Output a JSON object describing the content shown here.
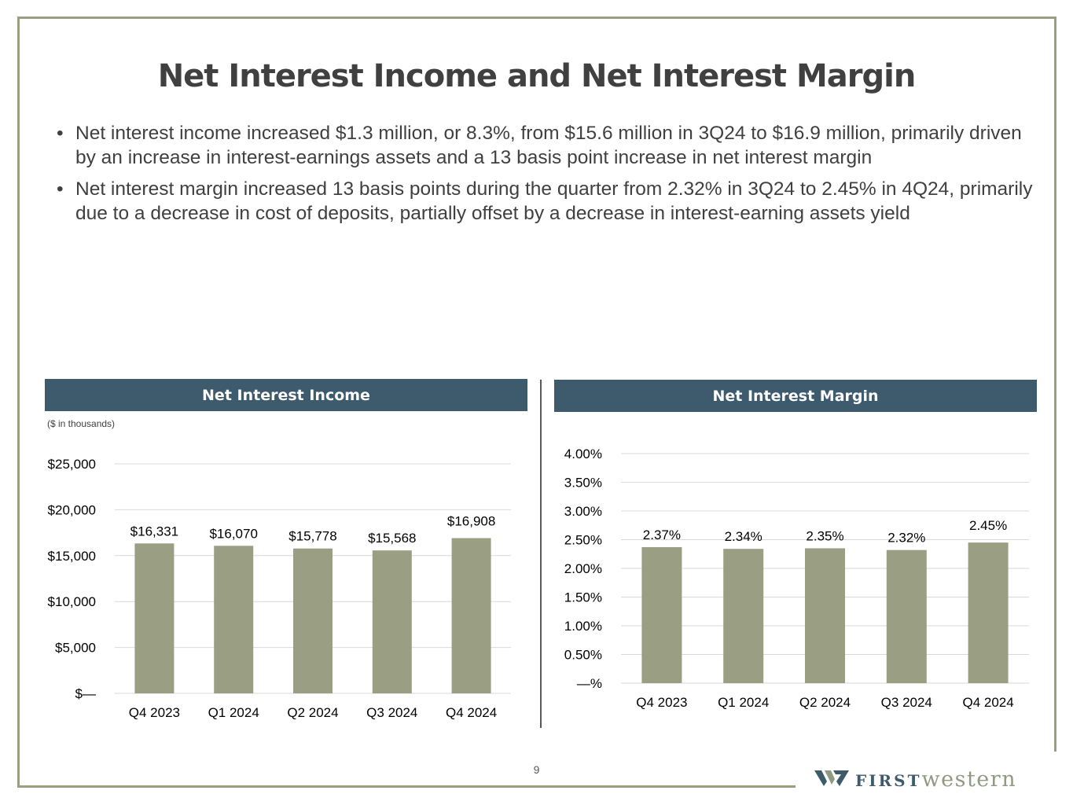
{
  "title": "Net Interest Income and Net Interest Margin",
  "bullets": [
    "Net interest income increased $1.3 million, or 8.3%, from $15.6 million in 3Q24 to $16.9 million, primarily driven by  an increase in interest-earnings assets and a 13 basis point increase in net interest margin",
    "Net interest margin increased 13 basis points during the quarter from 2.32% in 3Q24 to 2.45% in 4Q24, primarily due to a decrease in cost of deposits, partially offset by a decrease in interest-earning assets yield"
  ],
  "bullet_glyph": "•",
  "page_number": "9",
  "logo": {
    "first": "FIRST",
    "western": "western",
    "icon": "w-chevron-logo-icon"
  },
  "colors": {
    "frame": "#9c9e80",
    "header": "#3e5b6d",
    "bar": "#9a9f83",
    "grid": "#d9d9d9",
    "logo_first": "#3e5b6d",
    "logo_western": "#8f9a82"
  },
  "chart_data": [
    {
      "type": "bar",
      "title": "Net Interest Income",
      "subtitle": "($ in thousands)",
      "categories": [
        "Q4 2023",
        "Q1 2024",
        "Q2 2024",
        "Q3 2024",
        "Q4 2024"
      ],
      "values": [
        16331,
        16070,
        15778,
        15568,
        16908
      ],
      "value_labels": [
        "$16,331",
        "$16,070",
        "$15,778",
        "$15,568",
        "$16,908"
      ],
      "ylim": [
        0,
        25000
      ],
      "yticks": [
        0,
        5000,
        10000,
        15000,
        20000,
        25000
      ],
      "ytick_labels": [
        "$—",
        "$5,000",
        "$10,000",
        "$15,000",
        "$20,000",
        "$25,000"
      ],
      "grid": true,
      "legend": "none"
    },
    {
      "type": "bar",
      "title": "Net Interest Margin",
      "categories": [
        "Q4 2023",
        "Q1 2024",
        "Q2 2024",
        "Q3 2024",
        "Q4 2024"
      ],
      "values": [
        2.37,
        2.34,
        2.35,
        2.32,
        2.45
      ],
      "value_labels": [
        "2.37%",
        "2.34%",
        "2.35%",
        "2.32%",
        "2.45%"
      ],
      "ylim": [
        0,
        4.0
      ],
      "yticks": [
        0,
        0.5,
        1.0,
        1.5,
        2.0,
        2.5,
        3.0,
        3.5,
        4.0
      ],
      "ytick_labels": [
        "—%",
        "0.50%",
        "1.00%",
        "1.50%",
        "2.00%",
        "2.50%",
        "3.00%",
        "3.50%",
        "4.00%"
      ],
      "grid": true,
      "legend": "none"
    }
  ]
}
